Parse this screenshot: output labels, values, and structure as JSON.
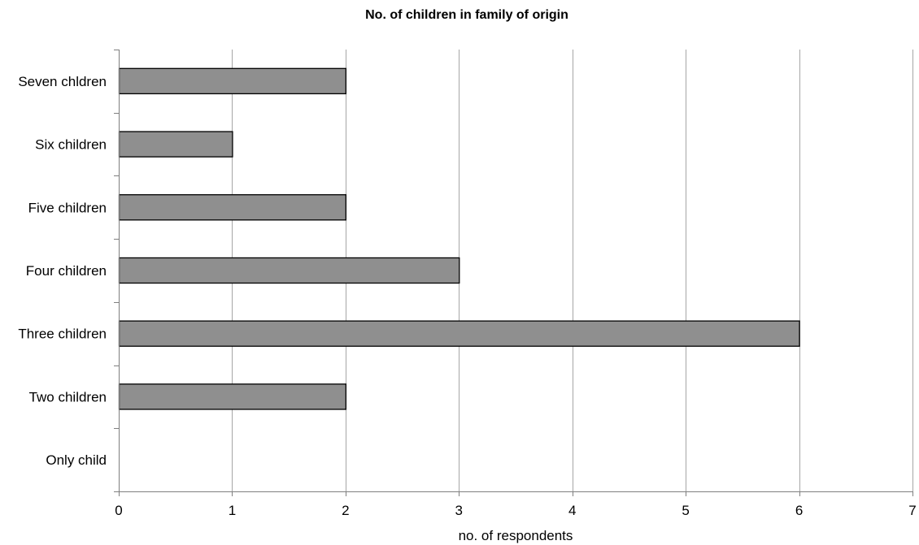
{
  "chart_data": {
    "type": "bar",
    "orientation": "horizontal",
    "title": "No. of children in family of origin",
    "xlabel": "no. of respondents",
    "ylabel": "",
    "categories": [
      "Only child",
      "Two children",
      "Three children",
      "Four children",
      "Five children",
      "Six children",
      "Seven chldren"
    ],
    "values": [
      0,
      2,
      6,
      3,
      2,
      1,
      2
    ],
    "xlim": [
      0,
      7
    ],
    "xticks": [
      "0",
      "1",
      "2",
      "3",
      "4",
      "5",
      "6",
      "7"
    ],
    "grid": "vertical",
    "legend": "none",
    "bar_color": "#8f8f8f"
  }
}
